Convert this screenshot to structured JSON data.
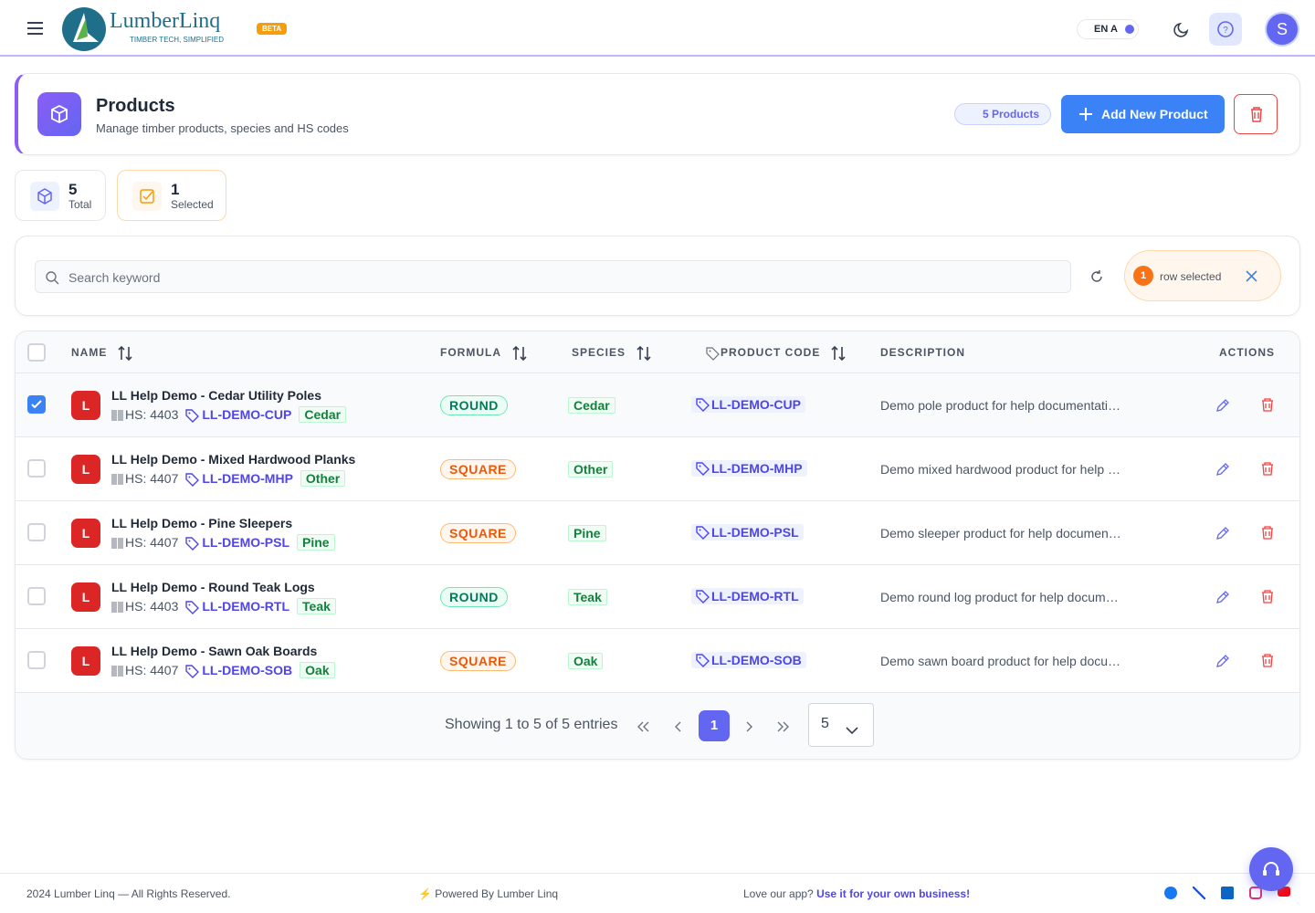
{
  "header": {
    "brand": "LumberLinq",
    "tagline": "TIMBER TECH, SIMPLIFIED",
    "badge": "BETA",
    "lang": "EN",
    "font_toggle": "A",
    "avatar": "S"
  },
  "page": {
    "title": "Products",
    "subtitle": "Manage timber products, species and HS codes",
    "count_badge": "5 Products",
    "add_button": "Add New Product"
  },
  "stats": [
    {
      "value": 5,
      "label": "Total"
    },
    {
      "value": 1,
      "label": "Selected"
    }
  ],
  "search": {
    "placeholder": "Search keyword",
    "selected_count": 1,
    "selected_text": "row selected"
  },
  "table": {
    "columns": [
      "NAME",
      "FORMULA",
      "SPECIES",
      "PRODUCT CODE",
      "DESCRIPTION",
      "ACTIONS"
    ],
    "rows": [
      {
        "avatar": "L",
        "name": "LL Help Demo - Cedar Utility Poles",
        "hs": "HS: 4403",
        "code": "LL-DEMO-CUP",
        "species": "Cedar",
        "formula": "ROUND",
        "description": "Demo pole product for help documentati…",
        "selected": true
      },
      {
        "avatar": "L",
        "name": "LL Help Demo - Mixed Hardwood Planks",
        "hs": "HS: 4407",
        "code": "LL-DEMO-MHP",
        "species": "Other",
        "formula": "SQUARE",
        "description": "Demo mixed hardwood product for help …",
        "selected": false
      },
      {
        "avatar": "L",
        "name": "LL Help Demo - Pine Sleepers",
        "hs": "HS: 4407",
        "code": "LL-DEMO-PSL",
        "species": "Pine",
        "formula": "SQUARE",
        "description": "Demo sleeper product for help documen…",
        "selected": false
      },
      {
        "avatar": "L",
        "name": "LL Help Demo - Round Teak Logs",
        "hs": "HS: 4403",
        "code": "LL-DEMO-RTL",
        "species": "Teak",
        "formula": "ROUND",
        "description": "Demo round log product for help docum…",
        "selected": false
      },
      {
        "avatar": "L",
        "name": "LL Help Demo - Sawn Oak Boards",
        "hs": "HS: 4407",
        "code": "LL-DEMO-SOB",
        "species": "Oak",
        "formula": "SQUARE",
        "description": "Demo sawn board product for help docu…",
        "selected": false
      }
    ]
  },
  "pagination": {
    "summary": "Showing 1 to 5 of 5 entries",
    "current_page": 1,
    "page_size": 5
  },
  "footer": {
    "copyright": "2024 Lumber Linq — All Rights Reserved.",
    "powered": "Powered By Lumber Linq",
    "love": "Love our app?",
    "link": "Use it for your own business!"
  }
}
